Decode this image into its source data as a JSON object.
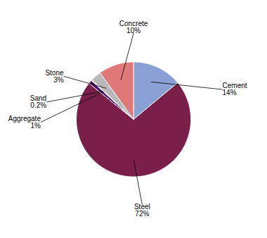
{
  "chart_data": {
    "type": "pie",
    "categories": [
      "Cement",
      "Steel",
      "Aggregate",
      "Sand",
      "Stone",
      "Concrete"
    ],
    "values": [
      14,
      72,
      1,
      0.2,
      3,
      10
    ],
    "value_labels": [
      "14%",
      "72%",
      "1%",
      "0.2%",
      "3%",
      "10%"
    ],
    "colors": [
      "#8a9fd4",
      "#7a1f4a",
      "#4a0d6e",
      "#c8c8c8",
      "#b8b8b8",
      "#e07878"
    ],
    "data_labels": true
  }
}
